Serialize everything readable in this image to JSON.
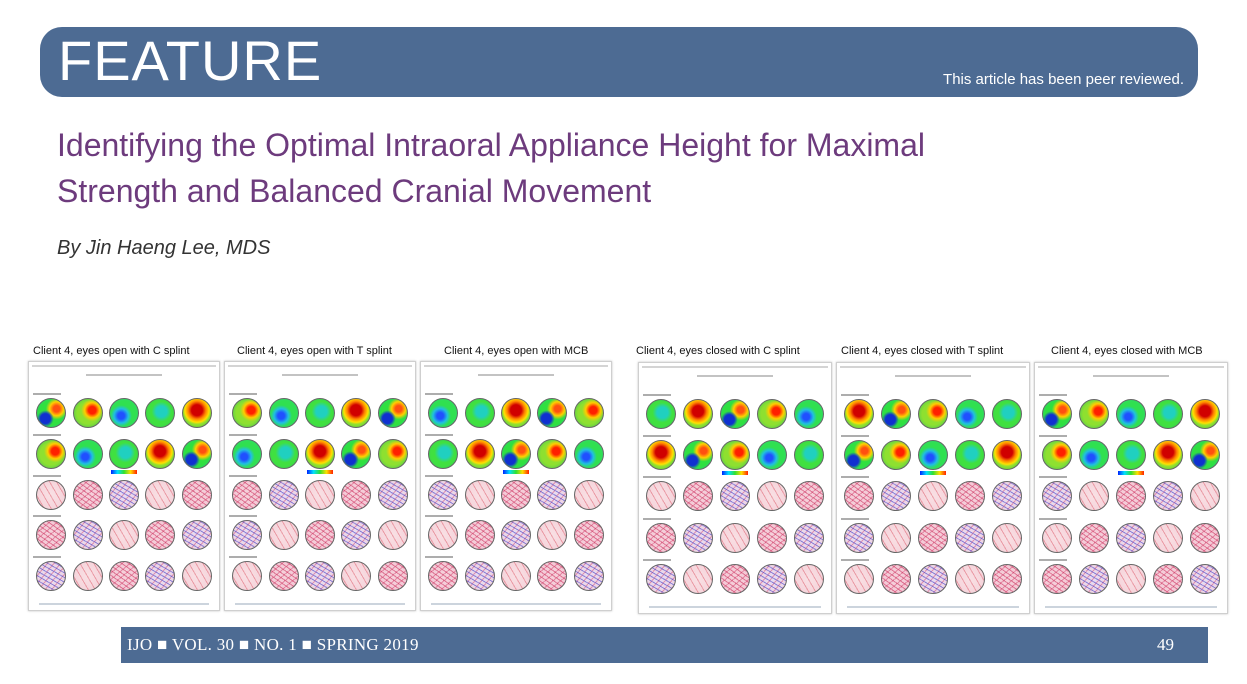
{
  "banner": {
    "label": "FEATURE",
    "peer_note": "This article has been peer reviewed."
  },
  "article": {
    "title_line1": "Identifying the Optimal Intraoral Appliance Height for Maximal",
    "title_line2": "Strength and Balanced Cranial Movement",
    "byline": "By Jin Haeng Lee, MDS"
  },
  "figures": [
    {
      "caption": "Client 4, eyes open with C splint"
    },
    {
      "caption": "Client 4, eyes open with T splint"
    },
    {
      "caption": "Client 4, eyes open with MCB"
    },
    {
      "caption": "Client 4, eyes closed with C splint"
    },
    {
      "caption": "Client 4, eyes closed with T splint"
    },
    {
      "caption": "Client 4, eyes closed with MCB"
    }
  ],
  "footer": {
    "citation": "IJO ■ VOL. 30 ■ NO. 1 ■ SPRING 2019",
    "page_number": "49"
  },
  "colors": {
    "banner_blue": "#4d6b93",
    "title_purple": "#6d3b7d"
  }
}
